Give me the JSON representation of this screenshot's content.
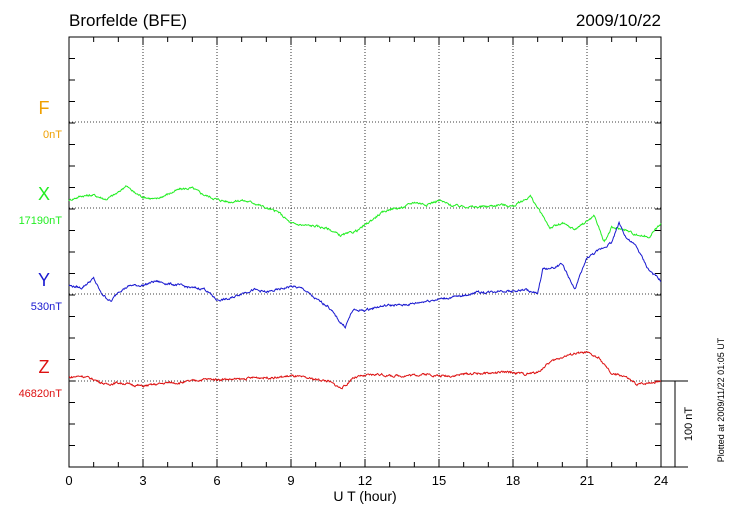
{
  "header": {
    "station": "Brorfelde (BFE)",
    "date": "2009/10/22"
  },
  "footer": {
    "plotted": "Plotted at 2009/11/22 01:05 UT"
  },
  "scale_bar": {
    "label": "100 nT",
    "value": 100
  },
  "chart_data": {
    "type": "line",
    "title": "Brorfelde (BFE)",
    "date": "2009/10/22",
    "xlabel": "U T (hour)",
    "xlim": [
      0,
      24
    ],
    "xticks": [
      0,
      3,
      6,
      9,
      12,
      15,
      18,
      21,
      24
    ],
    "grid": true,
    "scale_nT": 100,
    "series": [
      {
        "name": "F",
        "baseline_label": "0nT",
        "color": "#f0a000",
        "baseline_nT": 0,
        "x": [],
        "y": []
      },
      {
        "name": "X",
        "baseline_label": "17190nT",
        "color": "#22ee22",
        "baseline_nT": 17190,
        "x": [
          0,
          0.5,
          1,
          1.5,
          2,
          2.3,
          2.7,
          3,
          3.5,
          4,
          4.5,
          5,
          5.5,
          6,
          6.5,
          7,
          7.5,
          8,
          8.5,
          9,
          9.5,
          10,
          10.5,
          11,
          11.3,
          11.7,
          12,
          12.5,
          13,
          13.5,
          14,
          14.5,
          15,
          15.5,
          16,
          16.5,
          17,
          17.5,
          18,
          18.5,
          18.7,
          19,
          19.5,
          20,
          20.5,
          21,
          21.3,
          21.7,
          22,
          22.5,
          23,
          23.5,
          24
        ],
        "y": [
          17199,
          17204,
          17205,
          17200,
          17208,
          17216,
          17207,
          17203,
          17200,
          17206,
          17212,
          17213,
          17205,
          17200,
          17197,
          17199,
          17196,
          17190,
          17185,
          17172,
          17170,
          17169,
          17166,
          17158,
          17160,
          17164,
          17170,
          17181,
          17189,
          17190,
          17197,
          17194,
          17199,
          17193,
          17192,
          17191,
          17192,
          17194,
          17192,
          17200,
          17204,
          17190,
          17167,
          17172,
          17165,
          17175,
          17181,
          17150,
          17167,
          17165,
          17159,
          17156,
          17172
        ]
      },
      {
        "name": "Y",
        "baseline_label": "530nT",
        "color": "#1818d0",
        "baseline_nT": 530,
        "x": [
          0,
          0.5,
          1,
          1.3,
          1.7,
          2,
          2.5,
          3,
          3.5,
          4,
          4.5,
          5,
          5.5,
          6,
          6.5,
          7,
          7.5,
          8,
          8.5,
          9,
          9.5,
          10,
          10.5,
          11,
          11.2,
          11.5,
          12,
          12.5,
          13,
          13.5,
          14,
          14.5,
          15,
          15.5,
          16,
          16.5,
          17,
          17.5,
          18,
          18.5,
          19,
          19.2,
          19.6,
          20,
          20.5,
          21,
          21.5,
          22,
          22.3,
          22.6,
          23,
          23.5,
          24
        ],
        "y": [
          540,
          537,
          548,
          531,
          521,
          533,
          540,
          540,
          545,
          542,
          540,
          537,
          536,
          523,
          524,
          531,
          535,
          532,
          535,
          539,
          536,
          524,
          516,
          497,
          492,
          511,
          511,
          515,
          517,
          517,
          519,
          522,
          524,
          526,
          528,
          532,
          532,
          534,
          533,
          535,
          530,
          559,
          560,
          565,
          535,
          572,
          581,
          590,
          613,
          595,
          585,
          558,
          545
        ]
      },
      {
        "name": "Z",
        "baseline_label": "46820nT",
        "color": "#dd1111",
        "baseline_nT": 46820,
        "x": [
          0,
          0.5,
          1,
          1.5,
          2,
          2.5,
          3,
          3.5,
          4,
          4.5,
          5,
          5.5,
          6,
          6.5,
          7,
          7.5,
          8,
          8.5,
          9,
          9.5,
          10,
          10.5,
          11,
          11.2,
          11.5,
          12,
          12.5,
          13,
          13.5,
          14,
          14.5,
          15,
          15.5,
          16,
          16.5,
          17,
          17.5,
          18,
          18.5,
          19,
          19.5,
          20,
          20.5,
          21,
          21.5,
          22,
          22.5,
          23,
          23.5,
          24
        ],
        "y": [
          46824,
          46826,
          46822,
          46816,
          46818,
          46816,
          46814,
          46816,
          46818,
          46818,
          46820,
          46822,
          46822,
          46822,
          46822,
          46824,
          46824,
          46824,
          46826,
          46824,
          46822,
          46820,
          46812,
          46814,
          46824,
          46826,
          46828,
          46826,
          46826,
          46827,
          46828,
          46826,
          46826,
          46828,
          46829,
          46829,
          46830,
          46830,
          46828,
          46830,
          46842,
          46848,
          46852,
          46853,
          46846,
          46828,
          46826,
          46816,
          46818,
          46820
        ]
      }
    ]
  }
}
